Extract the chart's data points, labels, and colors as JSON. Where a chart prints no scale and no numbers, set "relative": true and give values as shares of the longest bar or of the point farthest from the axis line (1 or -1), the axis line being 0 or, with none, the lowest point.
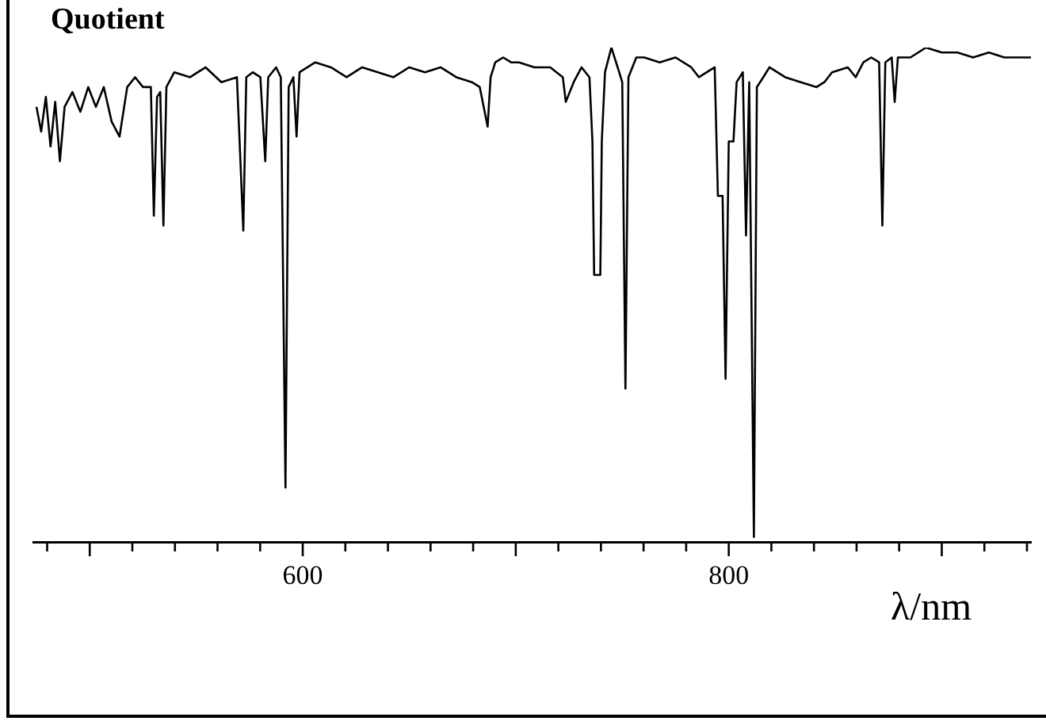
{
  "chart_data": {
    "type": "line",
    "title": "Quotient",
    "xlabel": "λ/nm",
    "relative": true,
    "color": "#000000",
    "marker": "none",
    "line_style": "solid",
    "grid": false,
    "legend": false,
    "tick_labels": "x",
    "xlim": [
      473.5,
      942
    ],
    "xticks": [
      {
        "value": 480,
        "label": null
      },
      {
        "value": 500,
        "label": null
      },
      {
        "value": 520,
        "label": null
      },
      {
        "value": 540,
        "label": null
      },
      {
        "value": 560,
        "label": null
      },
      {
        "value": 580,
        "label": null
      },
      600,
      {
        "value": 620,
        "label": null
      },
      {
        "value": 640,
        "label": null
      },
      {
        "value": 660,
        "label": null
      },
      {
        "value": 680,
        "label": null
      },
      {
        "value": 700,
        "label": null
      },
      {
        "value": 720,
        "label": null
      },
      {
        "value": 740,
        "label": null
      },
      {
        "value": 760,
        "label": null
      },
      {
        "value": 780,
        "label": null
      },
      800,
      {
        "value": 820,
        "label": null
      },
      {
        "value": 840,
        "label": null
      },
      {
        "value": 860,
        "label": null
      },
      {
        "value": 880,
        "label": null
      },
      {
        "value": 900,
        "label": null
      },
      {
        "value": 920,
        "label": null
      },
      {
        "value": 940,
        "label": null
      }
    ],
    "x": [
      475.0,
      477.2,
      479.4,
      481.6,
      483.8,
      486.0,
      488.2,
      491.9,
      495.6,
      499.3,
      502.9,
      506.6,
      510.3,
      514.0,
      517.6,
      521.3,
      525.0,
      528.7,
      530.1,
      531.6,
      533.1,
      534.6,
      536.0,
      539.7,
      547.1,
      554.4,
      561.8,
      569.1,
      572.1,
      573.5,
      576.5,
      580.1,
      582.4,
      583.8,
      587.5,
      589.7,
      591.9,
      593.4,
      595.6,
      597.1,
      598.5,
      605.9,
      613.2,
      620.6,
      627.9,
      635.3,
      642.6,
      650.0,
      657.4,
      664.7,
      672.1,
      679.4,
      683.1,
      686.8,
      688.2,
      690.4,
      694.1,
      697.8,
      701.5,
      708.8,
      716.2,
      722.1,
      723.5,
      727.2,
      730.9,
      734.6,
      736.0,
      736.8,
      739.7,
      740.4,
      741.9,
      744.9,
      747.1,
      750.0,
      751.5,
      752.9,
      756.6,
      760.3,
      767.6,
      775.0,
      782.4,
      786.0,
      789.7,
      793.4,
      794.9,
      797.1,
      798.5,
      800.0,
      802.2,
      803.7,
      806.6,
      808.1,
      809.6,
      811.8,
      813.2,
      816.2,
      819.1,
      826.5,
      833.8,
      841.2,
      844.9,
      848.5,
      855.9,
      859.6,
      863.2,
      866.9,
      870.6,
      872.1,
      873.5,
      876.5,
      877.9,
      879.4,
      885.3,
      892.6,
      900.0,
      907.4,
      914.7,
      922.1,
      929.4,
      941.9
    ],
    "values": [
      0.88,
      0.83,
      0.9,
      0.8,
      0.89,
      0.77,
      0.88,
      0.91,
      0.87,
      0.92,
      0.88,
      0.92,
      0.85,
      0.82,
      0.92,
      0.94,
      0.92,
      0.92,
      0.66,
      0.9,
      0.91,
      0.64,
      0.92,
      0.95,
      0.94,
      0.96,
      0.93,
      0.94,
      0.63,
      0.94,
      0.95,
      0.94,
      0.77,
      0.94,
      0.96,
      0.94,
      0.11,
      0.92,
      0.94,
      0.82,
      0.95,
      0.97,
      0.96,
      0.94,
      0.96,
      0.95,
      0.94,
      0.96,
      0.95,
      0.96,
      0.94,
      0.93,
      0.92,
      0.84,
      0.94,
      0.97,
      0.98,
      0.97,
      0.97,
      0.96,
      0.96,
      0.94,
      0.89,
      0.93,
      0.96,
      0.94,
      0.81,
      0.54,
      0.54,
      0.81,
      0.95,
      1,
      0.97,
      0.93,
      0.31,
      0.94,
      0.98,
      0.98,
      0.97,
      0.98,
      0.96,
      0.94,
      0.95,
      0.96,
      0.7,
      0.7,
      0.33,
      0.81,
      0.81,
      0.93,
      0.95,
      0.62,
      0.93,
      0.01,
      0.92,
      0.94,
      0.96,
      0.94,
      0.93,
      0.92,
      0.93,
      0.95,
      0.96,
      0.94,
      0.97,
      0.98,
      0.97,
      0.64,
      0.97,
      0.98,
      0.89,
      0.98,
      0.98,
      1,
      0.99,
      0.99,
      0.98,
      0.99,
      0.98,
      0.98
    ]
  }
}
